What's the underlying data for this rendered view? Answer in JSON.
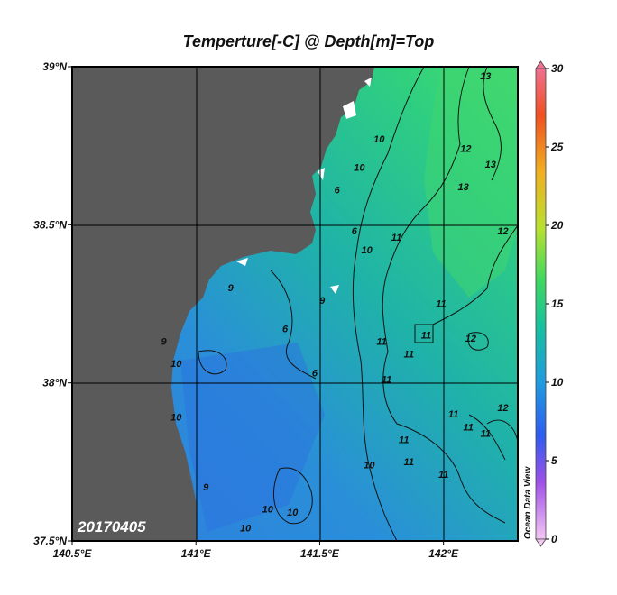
{
  "title": "Temperture[-C] @ Depth[m]=Top",
  "date_label": "20170405",
  "watermark": "Ocean Data View",
  "colors": {
    "land": "#5a5a5a",
    "ocean_low": "#2f7de0",
    "ocean_mid": "#1fb3a8",
    "ocean_high": "#3fd870",
    "grid": "#000000",
    "coast_white": "#ffffff"
  },
  "chart_data": {
    "type": "heatmap",
    "variable": "Temperature",
    "units": "-C",
    "depth": "Top",
    "x_axis": {
      "range": [
        140.5,
        142.3
      ],
      "ticks": [
        140.5,
        141.0,
        141.5,
        142.0
      ],
      "tick_labels": [
        "140.5°E",
        "141°E",
        "141.5°E",
        "142°E"
      ]
    },
    "y_axis": {
      "range": [
        37.5,
        39.0
      ],
      "ticks": [
        37.5,
        38.0,
        38.5,
        39.0
      ],
      "tick_labels": [
        "37.5°N",
        "38°N",
        "38.5°N",
        "39°N"
      ]
    },
    "grid": true,
    "colorbar": {
      "range": [
        0,
        30
      ],
      "ticks": [
        0,
        5,
        10,
        15,
        20,
        25,
        30
      ],
      "tick_labels": [
        "0",
        "5",
        "10",
        "15",
        "20",
        "25",
        "30"
      ],
      "stops": [
        "#f4c6f4",
        "#a050e8",
        "#2e5cf0",
        "#1f9ae0",
        "#17c0a0",
        "#3ed860",
        "#b8e030",
        "#f0b020",
        "#f05020",
        "#f07090"
      ]
    },
    "contour_labels": [
      {
        "value": "13",
        "lon": 142.17,
        "lat": 38.96
      },
      {
        "value": "10",
        "lon": 141.74,
        "lat": 38.76
      },
      {
        "value": "12",
        "lon": 142.09,
        "lat": 38.73
      },
      {
        "value": "13",
        "lon": 142.19,
        "lat": 38.68
      },
      {
        "value": "10",
        "lon": 141.66,
        "lat": 38.67
      },
      {
        "value": "13",
        "lon": 142.08,
        "lat": 38.61
      },
      {
        "value": "6",
        "lon": 141.57,
        "lat": 38.6
      },
      {
        "value": "12",
        "lon": 142.24,
        "lat": 38.47
      },
      {
        "value": "11",
        "lon": 141.81,
        "lat": 38.45
      },
      {
        "value": "6",
        "lon": 141.64,
        "lat": 38.47
      },
      {
        "value": "10",
        "lon": 141.69,
        "lat": 38.41
      },
      {
        "value": "9",
        "lon": 141.14,
        "lat": 38.29
      },
      {
        "value": "9",
        "lon": 141.51,
        "lat": 38.25
      },
      {
        "value": "11",
        "lon": 141.99,
        "lat": 38.24
      },
      {
        "value": "11",
        "lon": 141.93,
        "lat": 38.14
      },
      {
        "value": "12",
        "lon": 142.11,
        "lat": 38.13
      },
      {
        "value": "9",
        "lon": 140.87,
        "lat": 38.12
      },
      {
        "value": "6",
        "lon": 141.36,
        "lat": 38.16
      },
      {
        "value": "11",
        "lon": 141.75,
        "lat": 38.12
      },
      {
        "value": "11",
        "lon": 141.86,
        "lat": 38.08
      },
      {
        "value": "10",
        "lon": 140.92,
        "lat": 38.05
      },
      {
        "value": "6",
        "lon": 141.48,
        "lat": 38.02
      },
      {
        "value": "11",
        "lon": 141.77,
        "lat": 38.0
      },
      {
        "value": "11",
        "lon": 142.04,
        "lat": 37.89
      },
      {
        "value": "12",
        "lon": 142.24,
        "lat": 37.91
      },
      {
        "value": "10",
        "lon": 140.92,
        "lat": 37.88
      },
      {
        "value": "11",
        "lon": 142.1,
        "lat": 37.85
      },
      {
        "value": "11",
        "lon": 142.17,
        "lat": 37.83
      },
      {
        "value": "11",
        "lon": 141.84,
        "lat": 37.81
      },
      {
        "value": "11",
        "lon": 141.86,
        "lat": 37.74
      },
      {
        "value": "10",
        "lon": 141.7,
        "lat": 37.73
      },
      {
        "value": "11",
        "lon": 142.0,
        "lat": 37.7
      },
      {
        "value": "9",
        "lon": 141.04,
        "lat": 37.66
      },
      {
        "value": "10",
        "lon": 141.29,
        "lat": 37.59
      },
      {
        "value": "10",
        "lon": 141.39,
        "lat": 37.58
      },
      {
        "value": "10",
        "lon": 141.2,
        "lat": 37.53
      }
    ]
  }
}
